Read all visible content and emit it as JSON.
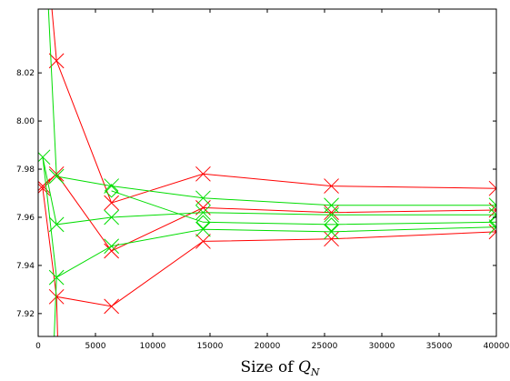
{
  "chart_data": {
    "type": "line",
    "xlabel_prefix": "Size of ",
    "xlabel_symbol": "Q",
    "xlabel_subscript": "N",
    "xlim": [
      0,
      40000
    ],
    "ylim": [
      7.9105,
      8.0465
    ],
    "x_ticks": [
      0,
      5000,
      10000,
      15000,
      20000,
      25000,
      30000,
      35000,
      40000
    ],
    "x_tick_labels": [
      "0",
      "5000",
      "10000",
      "15000",
      "20000",
      "25000",
      "30000",
      "35000",
      "40000"
    ],
    "y_ticks": [
      7.92,
      7.94,
      7.96,
      7.98,
      8.0,
      8.02
    ],
    "y_tick_labels": [
      "7.92",
      "7.94",
      "7.96",
      "7.98",
      "8.00",
      "8.02"
    ],
    "grid": false,
    "legend": "none",
    "series": [
      {
        "color": "#ff0000",
        "marker": "x",
        "x": [
          400,
          1600,
          6400,
          14400,
          25600,
          40000
        ],
        "y": [
          7.973,
          7.978,
          7.946,
          7.964,
          7.962,
          7.963
        ]
      },
      {
        "color": "#ff0000",
        "marker": "x",
        "x": [
          400,
          1600,
          6400,
          14400,
          25600,
          40000
        ],
        "y": [
          7.972,
          7.927,
          7.923,
          7.95,
          7.951,
          7.954
        ]
      },
      {
        "color": "#ff0000",
        "marker": "x",
        "x": [
          1600,
          6400,
          14400,
          25600,
          40000
        ],
        "y": [
          8.025,
          7.966,
          7.978,
          7.973,
          7.972
        ]
      },
      {
        "color": "#ff0000",
        "marker": "none",
        "x": [
          1200,
          1600
        ],
        "y": [
          8.0465,
          8.025
        ]
      },
      {
        "color": "#ff0000",
        "marker": "none",
        "x": [
          1600,
          1700
        ],
        "y": [
          7.927,
          7.9105
        ]
      },
      {
        "color": "#00dd00",
        "marker": "x",
        "x": [
          1600,
          6400,
          14400,
          25600,
          40000
        ],
        "y": [
          7.977,
          7.973,
          7.968,
          7.965,
          7.965
        ]
      },
      {
        "color": "#00dd00",
        "marker": "x",
        "x": [
          400,
          1600,
          6400,
          14400,
          25600,
          40000
        ],
        "y": [
          7.985,
          7.957,
          7.96,
          7.962,
          7.961,
          7.961
        ]
      },
      {
        "color": "#00dd00",
        "marker": "x",
        "x": [
          1600,
          6400,
          14400,
          25600,
          40000
        ],
        "y": [
          7.935,
          7.948,
          7.955,
          7.954,
          7.956
        ]
      },
      {
        "color": "#00dd00",
        "marker": "diamond",
        "x": [
          6400,
          14400,
          25600,
          40000
        ],
        "y": [
          7.971,
          7.958,
          7.957,
          7.958
        ]
      },
      {
        "color": "#00dd00",
        "marker": "none",
        "x": [
          900,
          1600
        ],
        "y": [
          8.0465,
          7.977
        ]
      },
      {
        "color": "#00dd00",
        "marker": "none",
        "x": [
          400,
          1600
        ],
        "y": [
          7.985,
          7.935
        ]
      },
      {
        "color": "#00dd00",
        "marker": "none",
        "x": [
          1400,
          1600
        ],
        "y": [
          7.9105,
          7.935
        ]
      }
    ]
  }
}
